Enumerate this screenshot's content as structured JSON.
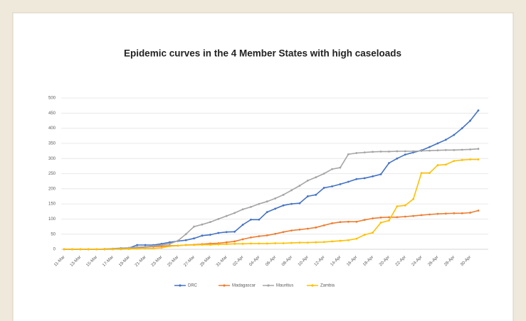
{
  "chart_data": {
    "type": "line",
    "title": "Epidemic curves in the 4 Member States with high caseloads",
    "categories": [
      "11-Mar",
      null,
      "13-Mar",
      null,
      "15-Mar",
      null,
      "17-Mar",
      null,
      "19-Mar",
      null,
      "21-Mar",
      null,
      "23-Mar",
      null,
      "25-Mar",
      null,
      "27-Mar",
      null,
      "29-Mar",
      null,
      "31-Mar",
      null,
      "02-Apr",
      null,
      "04-Apr",
      null,
      "06-Apr",
      null,
      "08-Apr",
      null,
      "10-Apr",
      null,
      "12-Apr",
      null,
      "14-Apr",
      null,
      "16-Apr",
      null,
      "18-Apr",
      null,
      "20-Apr",
      null,
      "22-Apr",
      null,
      "24-Apr",
      null,
      "26-Apr",
      null,
      "28-Apr",
      null,
      "30-Apr",
      null
    ],
    "series": [
      {
        "name": "DRC",
        "color": "#4472c4",
        "values": [
          0,
          0,
          0,
          0,
          0,
          0,
          1,
          3,
          4,
          14,
          14,
          14,
          18,
          23,
          27,
          30,
          36,
          45,
          48,
          54,
          57,
          58,
          81,
          98,
          98,
          123,
          134,
          145,
          150,
          152,
          175,
          180,
          203,
          208,
          215,
          223,
          232,
          235,
          241,
          248,
          285,
          300,
          313,
          320,
          327,
          338,
          350,
          362,
          378,
          400,
          425,
          459
        ]
      },
      {
        "name": "Madagascar",
        "color": "#ed7d31",
        "values": [
          0,
          0,
          0,
          0,
          0,
          0,
          0,
          3,
          3,
          5,
          7,
          9,
          10,
          12,
          12,
          14,
          15,
          17,
          19,
          20,
          23,
          26,
          33,
          39,
          43,
          46,
          51,
          57,
          62,
          65,
          68,
          72,
          79,
          86,
          90,
          91,
          91,
          97,
          102,
          105,
          106,
          106,
          108,
          110,
          113,
          115,
          117,
          118,
          119,
          119,
          121,
          128
        ]
      },
      {
        "name": "Mauritius",
        "color": "#a5a5a5",
        "values": [
          0,
          0,
          0,
          0,
          0,
          1,
          2,
          4,
          5,
          7,
          8,
          11,
          14,
          18,
          28,
          50,
          75,
          82,
          90,
          100,
          110,
          120,
          132,
          140,
          150,
          158,
          168,
          180,
          195,
          210,
          227,
          238,
          250,
          265,
          270,
          314,
          318,
          320,
          322,
          323,
          323,
          324,
          324,
          324,
          325,
          326,
          327,
          328,
          328,
          329,
          330,
          332
        ]
      },
      {
        "name": "Zambia",
        "color": "#ffc000",
        "values": [
          0,
          0,
          0,
          0,
          0,
          0,
          0,
          0,
          1,
          2,
          3,
          3,
          5,
          10,
          12,
          14,
          14,
          15,
          15,
          16,
          17,
          18,
          18,
          19,
          19,
          19,
          20,
          20,
          21,
          22,
          22,
          23,
          24,
          26,
          28,
          30,
          35,
          48,
          55,
          88,
          95,
          142,
          145,
          166,
          252,
          252,
          278,
          280,
          292,
          295,
          297,
          297
        ]
      }
    ],
    "ylim": [
      0,
      500
    ],
    "yticks": [
      0,
      50,
      100,
      150,
      200,
      250,
      300,
      350,
      400,
      450,
      500
    ],
    "grid": true,
    "legend": "bottom"
  }
}
